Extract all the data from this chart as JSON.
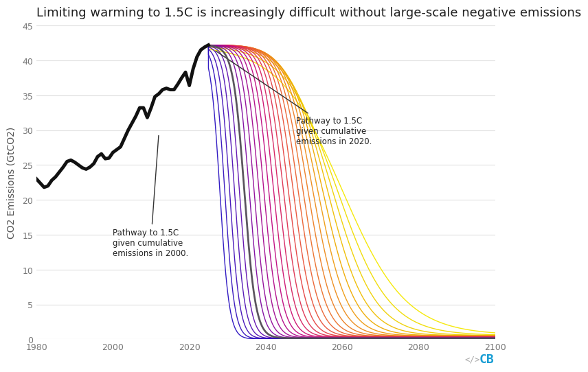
{
  "title": "Limiting warming to 1.5C is increasingly difficult without large-scale negative emissions",
  "ylabel": "CO2 Emissions (GtCO2)",
  "xlim": [
    1980,
    2100
  ],
  "ylim": [
    0,
    45
  ],
  "yticks": [
    0,
    5,
    10,
    15,
    20,
    25,
    30,
    35,
    40,
    45
  ],
  "xticks": [
    1980,
    2000,
    2020,
    2040,
    2060,
    2080,
    2100
  ],
  "background_color": "#ffffff",
  "grid_color": "#e0e0e0",
  "historical_color": "#111111",
  "annotation_2000_text": "Pathway to 1.5C\ngiven cumulative\nemissions in 2000.",
  "annotation_2020_text": "Pathway to 1.5C\ngiven cumulative\nemissions in 2020.",
  "title_fontsize": 13,
  "label_fontsize": 10,
  "tick_fontsize": 9,
  "hist_years": [
    1980,
    1981,
    1982,
    1983,
    1984,
    1985,
    1986,
    1987,
    1988,
    1989,
    1990,
    1991,
    1992,
    1993,
    1994,
    1995,
    1996,
    1997,
    1998,
    1999,
    2000,
    2001,
    2002,
    2003,
    2004,
    2005,
    2006,
    2007,
    2008,
    2009,
    2010,
    2011,
    2012,
    2013,
    2014,
    2015,
    2016,
    2017,
    2018,
    2019,
    2020,
    2021,
    2022,
    2023,
    2024,
    2025
  ],
  "hist_emissions": [
    23.0,
    22.4,
    21.8,
    22.0,
    22.8,
    23.3,
    24.0,
    24.7,
    25.5,
    25.7,
    25.4,
    25.0,
    24.6,
    24.4,
    24.7,
    25.2,
    26.2,
    26.6,
    25.9,
    26.0,
    26.8,
    27.2,
    27.6,
    28.8,
    30.0,
    31.0,
    32.0,
    33.2,
    33.2,
    31.8,
    33.2,
    34.8,
    35.2,
    35.8,
    36.0,
    35.8,
    35.8,
    36.6,
    37.5,
    38.3,
    36.4,
    38.8,
    40.5,
    41.5,
    41.9,
    42.2
  ],
  "pathway_start_years": [
    2000,
    2001,
    2002,
    2003,
    2004,
    2005,
    2006,
    2007,
    2008,
    2009,
    2010,
    2011,
    2012,
    2013,
    2014,
    2015,
    2016,
    2017,
    2018,
    2019,
    2020,
    2021,
    2022,
    2023,
    2024,
    2025
  ],
  "colors": [
    "#f5e800",
    "#f0dc00",
    "#efd000",
    "#efbd00",
    "#eeaa00",
    "#ee9a10",
    "#ed8a18",
    "#ec7c20",
    "#eb6e28",
    "#ea6030",
    "#e85038",
    "#e44040",
    "#de3050",
    "#d52060",
    "#cc1070",
    "#bf0880",
    "#b00888",
    "#a00890",
    "#900898",
    "#7e08a0",
    "#6e0aa8",
    "#5e0cae",
    "#4e10b4",
    "#400eb8",
    "#3210bc",
    "#2810c0"
  ],
  "highlight_color": "#555555"
}
